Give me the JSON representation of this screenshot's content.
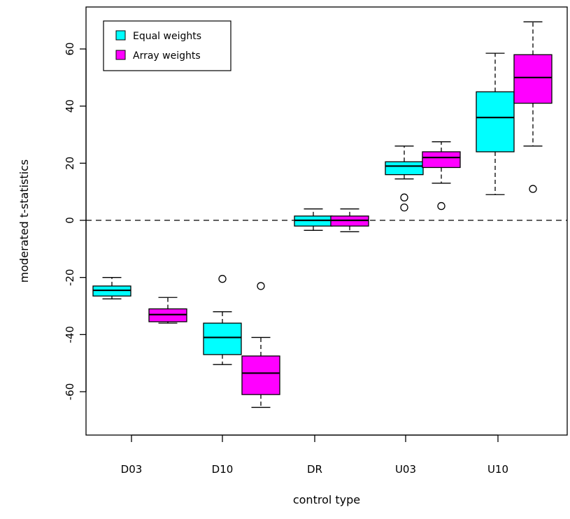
{
  "chart_data": {
    "type": "boxplot",
    "xlabel": "control type",
    "ylabel": "moderated t-statistics",
    "ylim": [
      -75,
      75
    ],
    "yticks": [
      -60,
      -40,
      -20,
      0,
      20,
      40,
      60
    ],
    "categories": [
      "D03",
      "D10",
      "DR",
      "U03",
      "U10"
    ],
    "reference_line": {
      "y": 0,
      "style": "dashed"
    },
    "legend": {
      "position": "top-left"
    },
    "series": [
      {
        "name": "Equal weights",
        "color": "#00FFFF",
        "boxes": [
          {
            "category": "D03",
            "whisker_low": -27.5,
            "q1": -26.5,
            "median": -24.5,
            "q3": -23,
            "whisker_high": -20,
            "outliers": []
          },
          {
            "category": "D10",
            "whisker_low": -50.5,
            "q1": -47,
            "median": -41,
            "q3": -36,
            "whisker_high": -32,
            "outliers": [
              -20.5
            ]
          },
          {
            "category": "DR",
            "whisker_low": -3.5,
            "q1": -2,
            "median": 0,
            "q3": 1.5,
            "whisker_high": 4,
            "outliers": []
          },
          {
            "category": "U03",
            "whisker_low": 14.5,
            "q1": 16,
            "median": 19,
            "q3": 20.5,
            "whisker_high": 26,
            "outliers": [
              8,
              4.5
            ]
          },
          {
            "category": "U10",
            "whisker_low": 9,
            "q1": 24,
            "median": 36,
            "q3": 45,
            "whisker_high": 58.5,
            "outliers": []
          }
        ]
      },
      {
        "name": "Array weights",
        "color": "#FF00FF",
        "boxes": [
          {
            "category": "D03",
            "whisker_low": -36,
            "q1": -35.5,
            "median": -33,
            "q3": -31,
            "whisker_high": -27,
            "outliers": []
          },
          {
            "category": "D10",
            "whisker_low": -65.5,
            "q1": -61,
            "median": -53.5,
            "q3": -47.5,
            "whisker_high": -41,
            "outliers": [
              -23
            ]
          },
          {
            "category": "DR",
            "whisker_low": -4,
            "q1": -2,
            "median": 0,
            "q3": 1.5,
            "whisker_high": 4,
            "outliers": []
          },
          {
            "category": "U03",
            "whisker_low": 13,
            "q1": 18.5,
            "median": 22,
            "q3": 24,
            "whisker_high": 27.5,
            "outliers": [
              5
            ]
          },
          {
            "category": "U10",
            "whisker_low": 26,
            "q1": 41,
            "median": 50,
            "q3": 58,
            "whisker_high": 69.5,
            "outliers": [
              11
            ]
          }
        ]
      }
    ]
  }
}
